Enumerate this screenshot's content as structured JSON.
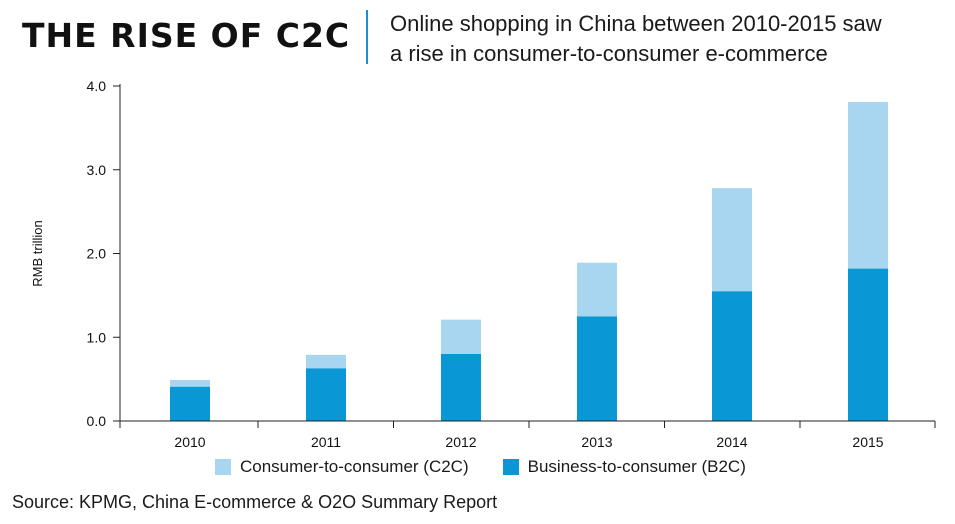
{
  "header": {
    "headline": "THE RISE OF C2C",
    "subtitle_line1": "Online shopping in China between 2010-2015 saw",
    "subtitle_line2": "a rise in consumer-to-consumer e-commerce"
  },
  "chart_data": {
    "type": "bar",
    "stacked": true,
    "categories": [
      "2010",
      "2011",
      "2012",
      "2013",
      "2014",
      "2015"
    ],
    "series": [
      {
        "name": "Business-to-consumer (B2C)",
        "values": [
          0.41,
          0.63,
          0.8,
          1.25,
          1.55,
          1.82
        ],
        "color": "#0a97d6"
      },
      {
        "name": "Consumer-to-consumer (C2C)",
        "values": [
          0.08,
          0.16,
          0.41,
          0.64,
          1.23,
          1.99
        ],
        "color": "#a8d5f0"
      }
    ],
    "ylabel": "RMB trillion",
    "ylim": [
      0,
      4.0
    ],
    "yticks": [
      "0.0",
      "1.0",
      "2.0",
      "3.0",
      "4.0"
    ],
    "grid": false,
    "legend_position": "bottom"
  },
  "legend": {
    "c2c_label": "Consumer-to-consumer (C2C)",
    "b2c_label": "Business-to-consumer (B2C)",
    "c2c_color": "#a8d5f0",
    "b2c_color": "#0a97d6"
  },
  "source": "Source: KPMG, China E-commerce & O2O Summary Report"
}
